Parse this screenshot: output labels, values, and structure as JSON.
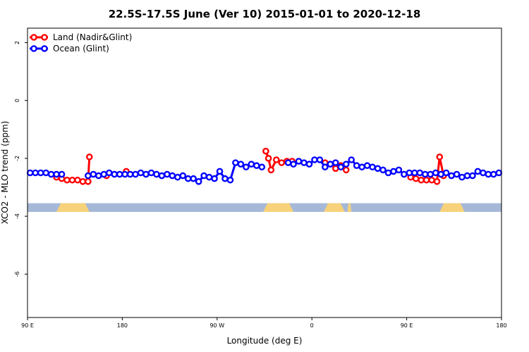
{
  "chart_data": {
    "type": "line",
    "title": "22.5S-17.5S June (Ver 10)   2015-01-01 to 2020-12-18",
    "xlabel": "Longitude (deg E)",
    "ylabel": "XCO2 - MLO trend (ppm)",
    "xlim": [
      90,
      450
    ],
    "ylim": [
      -7.5,
      2.5
    ],
    "x_ticks": [
      {
        "value": 90,
        "label": "90 E"
      },
      {
        "value": 162,
        "label": "180"
      },
      {
        "value": 234,
        "label": "90 W"
      },
      {
        "value": 306,
        "label": "0"
      },
      {
        "value": 378,
        "label": "90 E"
      },
      {
        "value": 450,
        "label": "180"
      }
    ],
    "y_ticks": [
      {
        "value": 2,
        "label": "2"
      },
      {
        "value": 0,
        "label": "0"
      },
      {
        "value": -2,
        "label": "-2"
      },
      {
        "value": -4,
        "label": "-4"
      },
      {
        "value": -6,
        "label": "-6"
      }
    ],
    "legend_position": "top-left",
    "grid": false,
    "series": [
      {
        "name": "Land (Nadir&Glint)",
        "color": "#ff0000",
        "x": [
          112,
          116,
          120,
          124,
          128,
          132,
          136,
          137,
          150,
          165,
          271,
          273,
          275,
          279,
          283,
          287,
          291,
          316,
          320,
          324,
          328,
          332,
          381,
          385,
          389,
          393,
          397,
          401,
          403,
          406
        ],
        "y": [
          -2.65,
          -2.7,
          -2.75,
          -2.75,
          -2.75,
          -2.8,
          -2.8,
          -1.95,
          -2.6,
          -2.45,
          -1.75,
          -2.0,
          -2.4,
          -2.05,
          -2.15,
          -2.1,
          -2.1,
          -2.15,
          -2.2,
          -2.35,
          -2.25,
          -2.4,
          -2.65,
          -2.7,
          -2.75,
          -2.75,
          -2.75,
          -2.8,
          -1.95,
          -2.6
        ]
      },
      {
        "name": "Ocean (Glint)",
        "color": "#0000ff",
        "x": [
          92,
          96,
          100,
          104,
          108,
          112,
          116,
          136,
          140,
          144,
          148,
          152,
          156,
          160,
          164,
          168,
          172,
          176,
          180,
          184,
          188,
          192,
          196,
          200,
          204,
          208,
          212,
          216,
          220,
          224,
          228,
          232,
          236,
          240,
          244,
          248,
          252,
          256,
          260,
          264,
          268,
          288,
          292,
          296,
          300,
          304,
          308,
          312,
          316,
          320,
          324,
          328,
          332,
          336,
          340,
          344,
          348,
          352,
          356,
          360,
          364,
          368,
          372,
          376,
          380,
          384,
          388,
          392,
          396,
          400,
          404,
          408,
          412,
          416,
          420,
          424,
          428,
          432,
          436,
          440,
          444,
          448
        ],
        "y": [
          -2.5,
          -2.5,
          -2.5,
          -2.5,
          -2.55,
          -2.55,
          -2.55,
          -2.6,
          -2.55,
          -2.6,
          -2.55,
          -2.5,
          -2.55,
          -2.55,
          -2.55,
          -2.55,
          -2.55,
          -2.5,
          -2.55,
          -2.5,
          -2.55,
          -2.6,
          -2.55,
          -2.6,
          -2.65,
          -2.6,
          -2.7,
          -2.7,
          -2.8,
          -2.6,
          -2.65,
          -2.7,
          -2.45,
          -2.7,
          -2.75,
          -2.15,
          -2.2,
          -2.3,
          -2.2,
          -2.25,
          -2.3,
          -2.15,
          -2.2,
          -2.1,
          -2.15,
          -2.2,
          -2.05,
          -2.05,
          -2.3,
          -2.2,
          -2.15,
          -2.3,
          -2.2,
          -2.05,
          -2.25,
          -2.3,
          -2.25,
          -2.3,
          -2.35,
          -2.4,
          -2.5,
          -2.45,
          -2.4,
          -2.55,
          -2.5,
          -2.5,
          -2.5,
          -2.55,
          -2.55,
          -2.5,
          -2.55,
          -2.5,
          -2.6,
          -2.55,
          -2.65,
          -2.6,
          -2.6,
          -2.45,
          -2.5,
          -2.55,
          -2.55,
          -2.5
        ]
      }
    ],
    "surface_bands": {
      "y_range": [
        -3.85,
        -3.55
      ],
      "ocean_color": "#a5b8d8",
      "land_color": "#f7d27a",
      "land_spans": [
        [
          112,
          137
        ],
        [
          269,
          292
        ],
        [
          315,
          331
        ],
        [
          333,
          336
        ],
        [
          403,
          422
        ]
      ]
    }
  }
}
